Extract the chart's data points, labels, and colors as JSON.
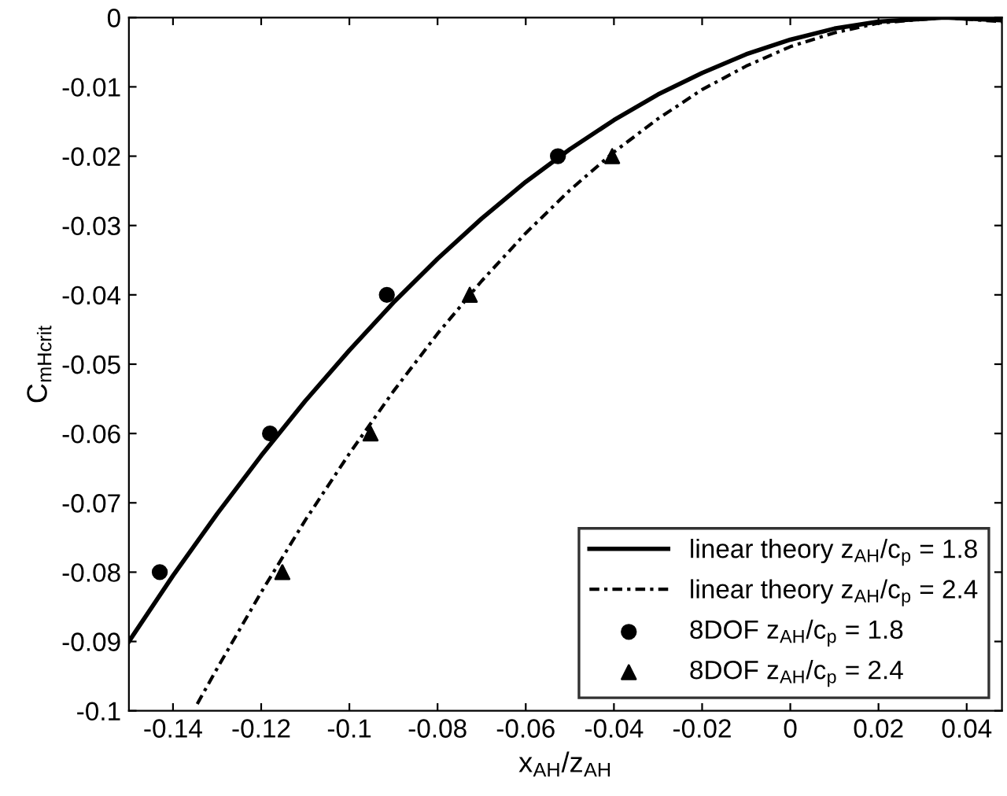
{
  "chart_data": {
    "type": "line",
    "xlabel": "x$_{AH}$/z$_{AH}$",
    "ylabel": "C$_{mHcrit}$",
    "xlim": [
      -0.15,
      0.048
    ],
    "xticks": [
      -0.14,
      -0.12,
      -0.1,
      -0.08,
      -0.06,
      -0.04,
      -0.02,
      0,
      0.02,
      0.04
    ],
    "ylim": [
      -0.1,
      0
    ],
    "yticks": [
      -0.1,
      -0.09,
      -0.08,
      -0.07,
      -0.06,
      -0.05,
      -0.04,
      -0.03,
      -0.02,
      -0.01,
      0
    ],
    "grid": false,
    "legend": "bottom right",
    "series": [
      {
        "name": "linear theory z$_{AH}$/c$_{p}$ = 1.8",
        "line_style": "solid",
        "marker": "none",
        "color": "#000000",
        "x": [
          -0.15,
          -0.14,
          -0.13,
          -0.12,
          -0.11,
          -0.1,
          -0.09,
          -0.08,
          -0.07,
          -0.06,
          -0.05,
          -0.04,
          -0.03,
          -0.02,
          -0.01,
          0,
          0.01,
          0.02,
          0.035,
          0.048
        ],
        "values": [
          -0.09,
          -0.0805,
          -0.0716,
          -0.0632,
          -0.0553,
          -0.048,
          -0.0411,
          -0.0348,
          -0.029,
          -0.0237,
          -0.019,
          -0.0148,
          -0.0111,
          -0.008,
          -0.0053,
          -0.0032,
          -0.0016,
          -0.0006,
          0,
          -0.0004
        ]
      },
      {
        "name": "linear theory z$_{AH}$/c$_{p}$ = 2.4",
        "line_style": "dashed",
        "marker": "none",
        "color": "#000000",
        "x": [
          -0.1345,
          -0.13,
          -0.12,
          -0.11,
          -0.1,
          -0.09,
          -0.08,
          -0.07,
          -0.06,
          -0.05,
          -0.04,
          -0.03,
          -0.02,
          -0.01,
          0,
          0.01,
          0.02,
          0.035,
          0.048
        ],
        "values": [
          -0.099,
          -0.0939,
          -0.0829,
          -0.0725,
          -0.0629,
          -0.0539,
          -0.0456,
          -0.038,
          -0.0311,
          -0.0249,
          -0.0194,
          -0.0146,
          -0.0104,
          -0.007,
          -0.0042,
          -0.0022,
          -0.0008,
          0,
          -0.0006
        ]
      },
      {
        "name": "8DOF z$_{AH}$/c$_{p}$ = 1.8",
        "type": "scatter",
        "marker": "circle",
        "color": "#000000",
        "x": [
          -0.143,
          -0.118,
          -0.0915,
          -0.0527
        ],
        "values": [
          -0.08,
          -0.06,
          -0.04,
          -0.02
        ]
      },
      {
        "name": "8DOF z$_{AH}$/c$_{p}$ = 2.4",
        "type": "scatter",
        "marker": "triangle",
        "color": "#000000",
        "x": [
          -0.1152,
          -0.0952,
          -0.0727,
          -0.0404
        ],
        "values": [
          -0.08,
          -0.06,
          -0.04,
          -0.02
        ]
      }
    ]
  }
}
